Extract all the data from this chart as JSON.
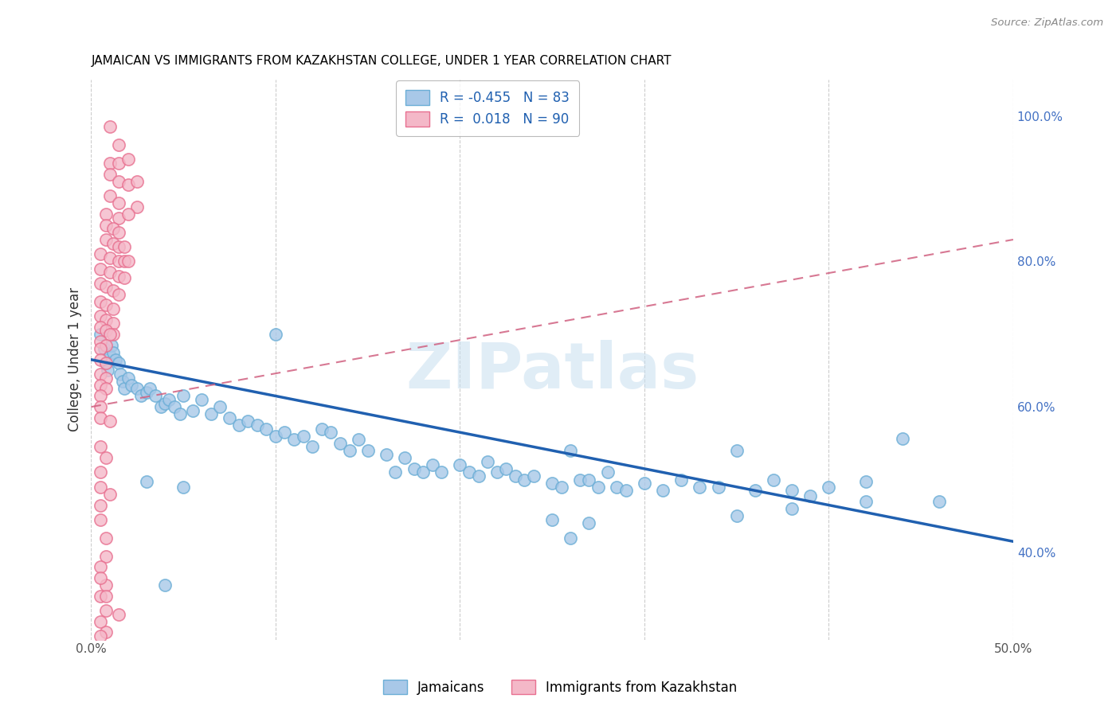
{
  "title": "JAMAICAN VS IMMIGRANTS FROM KAZAKHSTAN COLLEGE, UNDER 1 YEAR CORRELATION CHART",
  "source": "Source: ZipAtlas.com",
  "ylabel": "College, Under 1 year",
  "ylabel_right_ticks": [
    "40.0%",
    "60.0%",
    "80.0%",
    "100.0%"
  ],
  "ylabel_right_vals": [
    0.4,
    0.6,
    0.8,
    1.0
  ],
  "watermark": "ZIPatlas",
  "blue_color": "#a8c8e8",
  "blue_edge_color": "#6baed6",
  "pink_color": "#f4b8c8",
  "pink_edge_color": "#e87090",
  "blue_line_color": "#2060b0",
  "pink_line_color": "#d06080",
  "xlim": [
    0.0,
    0.5
  ],
  "ylim": [
    0.28,
    1.05
  ],
  "xtick_positions": [
    0.0,
    0.1,
    0.2,
    0.3,
    0.4,
    0.5
  ],
  "xtick_labels": [
    "0.0%",
    "",
    "",
    "",
    "",
    "50.0%"
  ],
  "blue_trend_x": [
    0.0,
    0.5
  ],
  "blue_trend_y": [
    0.665,
    0.415
  ],
  "pink_trend_x": [
    0.0,
    0.5
  ],
  "pink_trend_y": [
    0.6,
    0.83
  ],
  "blue_scatter": [
    [
      0.005,
      0.7
    ],
    [
      0.007,
      0.68
    ],
    [
      0.008,
      0.66
    ],
    [
      0.009,
      0.65
    ],
    [
      0.01,
      0.67
    ],
    [
      0.011,
      0.685
    ],
    [
      0.012,
      0.675
    ],
    [
      0.013,
      0.665
    ],
    [
      0.015,
      0.66
    ],
    [
      0.016,
      0.645
    ],
    [
      0.017,
      0.635
    ],
    [
      0.018,
      0.625
    ],
    [
      0.02,
      0.64
    ],
    [
      0.022,
      0.63
    ],
    [
      0.025,
      0.625
    ],
    [
      0.027,
      0.615
    ],
    [
      0.03,
      0.62
    ],
    [
      0.032,
      0.625
    ],
    [
      0.035,
      0.615
    ],
    [
      0.038,
      0.6
    ],
    [
      0.04,
      0.605
    ],
    [
      0.042,
      0.61
    ],
    [
      0.045,
      0.6
    ],
    [
      0.048,
      0.59
    ],
    [
      0.05,
      0.615
    ],
    [
      0.055,
      0.595
    ],
    [
      0.06,
      0.61
    ],
    [
      0.065,
      0.59
    ],
    [
      0.07,
      0.6
    ],
    [
      0.075,
      0.585
    ],
    [
      0.08,
      0.575
    ],
    [
      0.085,
      0.58
    ],
    [
      0.09,
      0.575
    ],
    [
      0.095,
      0.57
    ],
    [
      0.1,
      0.7
    ],
    [
      0.1,
      0.56
    ],
    [
      0.105,
      0.565
    ],
    [
      0.11,
      0.555
    ],
    [
      0.115,
      0.56
    ],
    [
      0.12,
      0.545
    ],
    [
      0.125,
      0.57
    ],
    [
      0.13,
      0.565
    ],
    [
      0.135,
      0.55
    ],
    [
      0.14,
      0.54
    ],
    [
      0.145,
      0.555
    ],
    [
      0.15,
      0.54
    ],
    [
      0.16,
      0.535
    ],
    [
      0.165,
      0.51
    ],
    [
      0.17,
      0.53
    ],
    [
      0.175,
      0.515
    ],
    [
      0.18,
      0.51
    ],
    [
      0.185,
      0.52
    ],
    [
      0.19,
      0.51
    ],
    [
      0.2,
      0.52
    ],
    [
      0.205,
      0.51
    ],
    [
      0.21,
      0.505
    ],
    [
      0.215,
      0.525
    ],
    [
      0.22,
      0.51
    ],
    [
      0.225,
      0.515
    ],
    [
      0.23,
      0.505
    ],
    [
      0.235,
      0.5
    ],
    [
      0.24,
      0.505
    ],
    [
      0.25,
      0.495
    ],
    [
      0.255,
      0.49
    ],
    [
      0.26,
      0.54
    ],
    [
      0.265,
      0.5
    ],
    [
      0.27,
      0.5
    ],
    [
      0.275,
      0.49
    ],
    [
      0.28,
      0.51
    ],
    [
      0.285,
      0.49
    ],
    [
      0.29,
      0.485
    ],
    [
      0.3,
      0.495
    ],
    [
      0.31,
      0.485
    ],
    [
      0.32,
      0.5
    ],
    [
      0.33,
      0.49
    ],
    [
      0.34,
      0.49
    ],
    [
      0.35,
      0.54
    ],
    [
      0.36,
      0.485
    ],
    [
      0.37,
      0.5
    ],
    [
      0.38,
      0.485
    ],
    [
      0.39,
      0.478
    ],
    [
      0.4,
      0.49
    ],
    [
      0.25,
      0.445
    ],
    [
      0.27,
      0.44
    ],
    [
      0.03,
      0.497
    ],
    [
      0.05,
      0.49
    ],
    [
      0.35,
      0.45
    ],
    [
      0.42,
      0.497
    ],
    [
      0.44,
      0.556
    ],
    [
      0.46,
      0.47
    ],
    [
      0.26,
      0.42
    ],
    [
      0.38,
      0.46
    ],
    [
      0.04,
      0.355
    ],
    [
      0.42,
      0.47
    ]
  ],
  "pink_scatter": [
    [
      0.01,
      0.985
    ],
    [
      0.015,
      0.96
    ],
    [
      0.01,
      0.935
    ],
    [
      0.015,
      0.935
    ],
    [
      0.02,
      0.94
    ],
    [
      0.01,
      0.92
    ],
    [
      0.015,
      0.91
    ],
    [
      0.02,
      0.905
    ],
    [
      0.025,
      0.91
    ],
    [
      0.01,
      0.89
    ],
    [
      0.015,
      0.88
    ],
    [
      0.025,
      0.875
    ],
    [
      0.008,
      0.865
    ],
    [
      0.015,
      0.86
    ],
    [
      0.02,
      0.865
    ],
    [
      0.008,
      0.85
    ],
    [
      0.012,
      0.845
    ],
    [
      0.015,
      0.84
    ],
    [
      0.008,
      0.83
    ],
    [
      0.012,
      0.825
    ],
    [
      0.015,
      0.82
    ],
    [
      0.018,
      0.82
    ],
    [
      0.005,
      0.81
    ],
    [
      0.01,
      0.805
    ],
    [
      0.015,
      0.8
    ],
    [
      0.018,
      0.8
    ],
    [
      0.005,
      0.79
    ],
    [
      0.01,
      0.785
    ],
    [
      0.015,
      0.78
    ],
    [
      0.018,
      0.778
    ],
    [
      0.005,
      0.77
    ],
    [
      0.008,
      0.765
    ],
    [
      0.012,
      0.76
    ],
    [
      0.015,
      0.755
    ],
    [
      0.005,
      0.745
    ],
    [
      0.008,
      0.74
    ],
    [
      0.012,
      0.735
    ],
    [
      0.005,
      0.725
    ],
    [
      0.008,
      0.72
    ],
    [
      0.012,
      0.715
    ],
    [
      0.005,
      0.71
    ],
    [
      0.008,
      0.705
    ],
    [
      0.012,
      0.7
    ],
    [
      0.01,
      0.7
    ],
    [
      0.005,
      0.69
    ],
    [
      0.008,
      0.685
    ],
    [
      0.005,
      0.68
    ],
    [
      0.005,
      0.665
    ],
    [
      0.008,
      0.66
    ],
    [
      0.005,
      0.645
    ],
    [
      0.008,
      0.64
    ],
    [
      0.005,
      0.63
    ],
    [
      0.008,
      0.625
    ],
    [
      0.005,
      0.615
    ],
    [
      0.005,
      0.6
    ],
    [
      0.02,
      0.8
    ],
    [
      0.005,
      0.585
    ],
    [
      0.01,
      0.58
    ],
    [
      0.005,
      0.545
    ],
    [
      0.008,
      0.53
    ],
    [
      0.005,
      0.51
    ],
    [
      0.005,
      0.49
    ],
    [
      0.01,
      0.48
    ],
    [
      0.005,
      0.465
    ],
    [
      0.005,
      0.445
    ],
    [
      0.008,
      0.42
    ],
    [
      0.008,
      0.395
    ],
    [
      0.005,
      0.38
    ],
    [
      0.008,
      0.355
    ],
    [
      0.005,
      0.34
    ],
    [
      0.008,
      0.32
    ],
    [
      0.015,
      0.315
    ],
    [
      0.005,
      0.305
    ],
    [
      0.008,
      0.29
    ],
    [
      0.005,
      0.285
    ],
    [
      0.005,
      0.365
    ],
    [
      0.008,
      0.34
    ]
  ]
}
